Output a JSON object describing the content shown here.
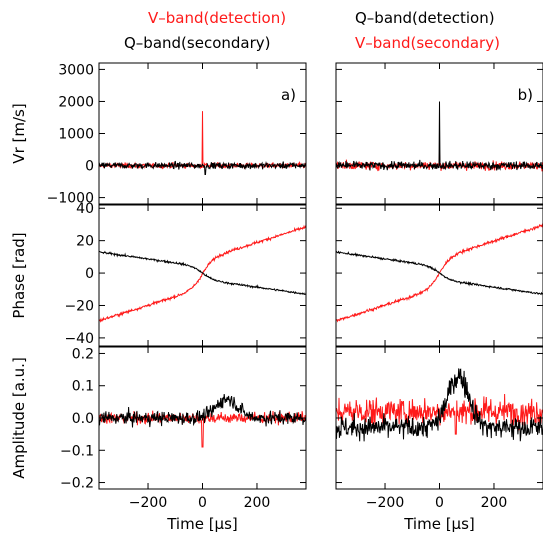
{
  "colors": {
    "red": "#ff1a1a",
    "black": "#000000"
  },
  "headers": {
    "left": [
      {
        "text": "V–band(detection)",
        "color": "red"
      },
      {
        "text": "Q–band(secondary)",
        "color": "black"
      }
    ],
    "right": [
      {
        "text": "Q–band(detection)",
        "color": "black"
      },
      {
        "text": "V–band(secondary)",
        "color": "red"
      }
    ]
  },
  "chart_data": [
    {
      "type": "line",
      "panel": "a)",
      "rows": [
        {
          "ylabel": "Vr [m/s]",
          "ylim": [
            -1200,
            3200
          ],
          "yticks": [
            -1000,
            0,
            1000,
            2000,
            3000
          ],
          "yticklabels": [
            "−1000",
            "0",
            "1000",
            "2000",
            "3000"
          ],
          "series": [
            {
              "color": "red",
              "baseline": 0,
              "noise": 55,
              "spike_x": 0,
              "spike_y": 1700
            },
            {
              "color": "black",
              "baseline": 0,
              "noise": 70,
              "spike_x": 10,
              "spike_y": -280
            }
          ]
        },
        {
          "ylabel": "Phase [rad]",
          "ylim": [
            -45,
            42
          ],
          "yticks": [
            -40,
            -20,
            0,
            20,
            40
          ],
          "yticklabels": [
            "−40",
            "−20",
            "0",
            "20",
            "40"
          ],
          "series": [
            {
              "color": "red",
              "start": -25,
              "end": 24,
              "noise": 0.6
            },
            {
              "color": "black",
              "start": 11,
              "end": -11,
              "noise": 0.4
            }
          ]
        },
        {
          "ylabel": "Amplitude [a.u.]",
          "ylim": [
            -0.22,
            0.22
          ],
          "yticks": [
            -0.2,
            -0.1,
            0.0,
            0.1,
            0.2
          ],
          "yticklabels": [
            "−0.2",
            "−0.1",
            "0.0",
            "0.1",
            "0.2"
          ],
          "series": [
            {
              "color": "red",
              "baseline": 0,
              "noise": 0.012,
              "dip_x": 0,
              "dip_y": -0.09
            },
            {
              "color": "black",
              "baseline": 0,
              "noise": 0.015,
              "bump_x": 90,
              "bump_y": 0.06
            }
          ]
        }
      ],
      "xlim": [
        -380,
        380
      ],
      "xticks": [
        -200,
        0,
        200
      ],
      "xticklabels": [
        "−200",
        "0",
        "200"
      ],
      "xlabel": "Time [μs]"
    },
    {
      "type": "line",
      "panel": "b)",
      "rows": [
        {
          "ylabel": "",
          "ylim": [
            -1200,
            3200
          ],
          "yticks": [
            -1000,
            0,
            1000,
            2000,
            3000
          ],
          "series": [
            {
              "color": "red",
              "baseline": 0,
              "noise": 90,
              "spike_x": 0,
              "spike_y": 380
            },
            {
              "color": "black",
              "baseline": 0,
              "noise": 90,
              "spike_x": 0,
              "spike_y": 2000
            }
          ]
        },
        {
          "ylabel": "",
          "ylim": [
            -45,
            42
          ],
          "yticks": [
            -40,
            -20,
            0,
            20,
            40
          ],
          "series": [
            {
              "color": "red",
              "start": -25,
              "end": 25,
              "noise": 0.6
            },
            {
              "color": "black",
              "start": 11,
              "end": -11,
              "noise": 0.4
            }
          ]
        },
        {
          "ylabel": "",
          "ylim": [
            -0.22,
            0.22
          ],
          "yticks": [
            -0.2,
            -0.1,
            0.0,
            0.1,
            0.2
          ],
          "series": [
            {
              "color": "red",
              "baseline": 0.02,
              "noise": 0.03,
              "dip_x": 60,
              "dip_y": -0.05
            },
            {
              "color": "black",
              "baseline": -0.03,
              "noise": 0.025,
              "bump_x": 70,
              "bump_y": 0.16
            }
          ]
        }
      ],
      "xlim": [
        -380,
        380
      ],
      "xticks": [
        -200,
        0,
        200
      ],
      "xticklabels": [
        "−200",
        "0",
        "200"
      ],
      "xlabel": "Time [μs]"
    }
  ]
}
